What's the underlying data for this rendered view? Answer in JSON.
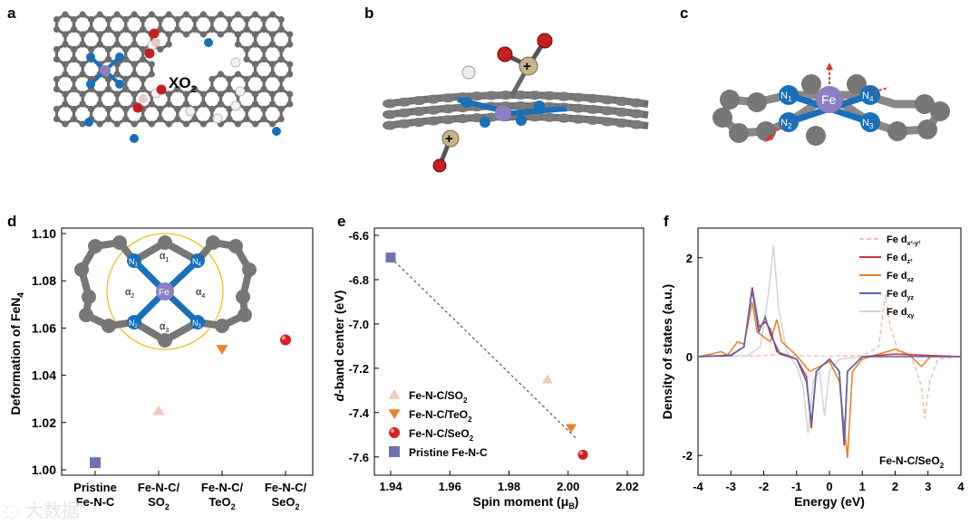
{
  "panel_letters": {
    "a": "a",
    "b": "b",
    "c": "c",
    "d": "d",
    "e": "e",
    "f": "f"
  },
  "panel_a": {
    "label": "XO",
    "sub": "2"
  },
  "panel_c": {
    "atoms": {
      "fe": "Fe",
      "n1": "N",
      "n1s": "1",
      "n2": "N",
      "n2s": "2",
      "n3": "N",
      "n3s": "3",
      "n4": "N",
      "n4s": "4"
    }
  },
  "panel_b": {
    "plus": "+"
  },
  "chart_data": [
    {
      "id": "d",
      "type": "scatter",
      "ylabel": "Deformation of FeN",
      "ylabel_sub": "4",
      "ylim": [
        1.0,
        1.1
      ],
      "yticks": [
        "1.00",
        "1.02",
        "1.04",
        "1.06",
        "1.08",
        "1.10"
      ],
      "categories": [
        {
          "l1": "Pristine",
          "l2": "Fe-N-C",
          "l2sub": ""
        },
        {
          "l1": "Fe-N-C/",
          "l2": "SO",
          "l2sub": "2"
        },
        {
          "l1": "Fe-N-C/",
          "l2": "TeO",
          "l2sub": "2"
        },
        {
          "l1": "Fe-N-C/",
          "l2": "SeO",
          "l2sub": "2"
        }
      ],
      "points": [
        {
          "cat": 0,
          "y": 1.003,
          "marker": "square",
          "color": "#6b74b0"
        },
        {
          "cat": 1,
          "y": 1.025,
          "marker": "triangle",
          "color": "#f0c8bc"
        },
        {
          "cat": 2,
          "y": 1.051,
          "marker": "triangle-down",
          "color": "#e8852a"
        },
        {
          "cat": 3,
          "y": 1.055,
          "marker": "circle",
          "color": "#d62020"
        }
      ],
      "inset": {
        "fe": "Fe",
        "n1": "N",
        "n1s": "1",
        "n2": "N",
        "n2s": "2",
        "n3": "N",
        "n3s": "3",
        "n4": "N",
        "n4s": "4",
        "a1": "α",
        "a1s": "1",
        "a2": "α",
        "a2s": "2",
        "a3": "α",
        "a3s": "3",
        "a4": "α",
        "a4s": "4"
      }
    },
    {
      "id": "e",
      "type": "scatter",
      "xlabel": "Spin moment (μ",
      "xlabel_sub": "B",
      "xlabel_end": ")",
      "ylabel_italic": "d",
      "ylabel": "-band center (eV)",
      "xlim": [
        1.94,
        2.02
      ],
      "ylim": [
        -7.65,
        -6.6
      ],
      "xticks": [
        "1.94",
        "1.96",
        "1.98",
        "2.00",
        "2.02"
      ],
      "yticks": [
        "-6.6",
        "-6.8",
        "-7.0",
        "-7.2",
        "-7.4",
        "-7.6"
      ],
      "points": [
        {
          "name": "Pristine Fe-N-C",
          "x": 1.94,
          "y": -6.7,
          "marker": "square",
          "color": "#6b74b0"
        },
        {
          "name": "Fe-N-C/SO2",
          "x": 1.993,
          "y": -7.25,
          "marker": "triangle",
          "color": "#f0c8bc"
        },
        {
          "name": "Fe-N-C/TeO2",
          "x": 2.001,
          "y": -7.47,
          "marker": "triangle-down",
          "color": "#e8852a"
        },
        {
          "name": "Fe-N-C/SeO2",
          "x": 2.005,
          "y": -7.59,
          "marker": "circle",
          "color": "#d62020"
        }
      ],
      "fit_line": {
        "x": [
          1.94,
          2.003
        ],
        "y": [
          -6.7,
          -7.52
        ]
      },
      "legend": [
        {
          "label": "Fe-N-C/SO",
          "sub": "2",
          "marker": "triangle",
          "color": "#f0c8bc"
        },
        {
          "label": "Fe-N-C/TeO",
          "sub": "2",
          "marker": "triangle-down",
          "color": "#e8852a"
        },
        {
          "label": "Fe-N-C/SeO",
          "sub": "2",
          "marker": "circle",
          "color": "#d62020"
        },
        {
          "label": "Pristine Fe-N-C",
          "sub": "",
          "marker": "square",
          "color": "#6b74b0"
        }
      ]
    },
    {
      "id": "f",
      "type": "line",
      "xlabel": "Energy (eV)",
      "ylabel": "Density of states (a.u.)",
      "xlim": [
        -4,
        4
      ],
      "ylim": [
        -2.4,
        2.6
      ],
      "xticks": [
        "-4",
        "-3",
        "-2",
        "-1",
        "0",
        "1",
        "2",
        "3",
        "4"
      ],
      "yticks": [
        "2",
        "0",
        "-2"
      ],
      "annotation": {
        "text": "Fe-N-C/SeO",
        "sub": "2"
      },
      "series": [
        {
          "name": "Fe d",
          "sub": "x²-y²",
          "color": "#f2c2b2",
          "dash": true,
          "points": [
            [
              -4,
              0
            ],
            [
              -3,
              0.01
            ],
            [
              -2,
              0.02
            ],
            [
              -1.5,
              0.05
            ],
            [
              -1,
              0.02
            ],
            [
              0,
              0.01
            ],
            [
              1,
              0.02
            ],
            [
              1.5,
              0.2
            ],
            [
              1.7,
              1.25
            ],
            [
              1.85,
              0.6
            ],
            [
              2.1,
              0.1
            ],
            [
              2.5,
              0
            ],
            [
              2.8,
              -0.6
            ],
            [
              2.9,
              -1.25
            ],
            [
              3.05,
              -0.5
            ],
            [
              3.3,
              -0.05
            ],
            [
              4,
              0
            ]
          ]
        },
        {
          "name": "Fe d",
          "sub": "z²",
          "color": "#d1303a",
          "dash": false,
          "points": [
            [
              -4,
              0
            ],
            [
              -3,
              0.03
            ],
            [
              -2.6,
              0.2
            ],
            [
              -2.35,
              1.4
            ],
            [
              -2.15,
              0.6
            ],
            [
              -1.95,
              0.7
            ],
            [
              -1.8,
              0.55
            ],
            [
              -1.6,
              0.1
            ],
            [
              -1,
              -0.05
            ],
            [
              -0.7,
              -0.4
            ],
            [
              -0.55,
              -1.45
            ],
            [
              -0.4,
              -0.3
            ],
            [
              0,
              -0.05
            ],
            [
              0.3,
              -0.3
            ],
            [
              0.45,
              -1.8
            ],
            [
              0.55,
              -0.3
            ],
            [
              1,
              0
            ],
            [
              2,
              0.05
            ],
            [
              4,
              0
            ]
          ]
        },
        {
          "name": "Fe d",
          "sub": "xz",
          "color": "#e8852a",
          "dash": false,
          "points": [
            [
              -4,
              0
            ],
            [
              -3.6,
              0.05
            ],
            [
              -3.3,
              0.1
            ],
            [
              -3.1,
              0.03
            ],
            [
              -2.8,
              0.3
            ],
            [
              -2.6,
              0.25
            ],
            [
              -2.35,
              1.1
            ],
            [
              -2.2,
              0.5
            ],
            [
              -1.8,
              0.3
            ],
            [
              -1.6,
              0.75
            ],
            [
              -1.45,
              0.3
            ],
            [
              -1,
              0.02
            ],
            [
              -0.6,
              -0.3
            ],
            [
              0,
              -0.1
            ],
            [
              0.3,
              -0.5
            ],
            [
              0.55,
              -2.05
            ],
            [
              0.7,
              -0.3
            ],
            [
              1,
              -0.05
            ],
            [
              1.5,
              0.05
            ],
            [
              2,
              0.15
            ],
            [
              2.4,
              0.05
            ],
            [
              2.8,
              -0.2
            ],
            [
              3.1,
              0.02
            ],
            [
              4,
              0
            ]
          ]
        },
        {
          "name": "Fe d",
          "sub": "yz",
          "color": "#5a64ac",
          "dash": false,
          "points": [
            [
              -4,
              0
            ],
            [
              -3,
              0.02
            ],
            [
              -2.6,
              0.2
            ],
            [
              -2.35,
              1.35
            ],
            [
              -2.15,
              0.5
            ],
            [
              -1.95,
              0.8
            ],
            [
              -1.8,
              0.45
            ],
            [
              -1.5,
              0.05
            ],
            [
              -1,
              -0.05
            ],
            [
              -0.7,
              -0.5
            ],
            [
              -0.55,
              -1.35
            ],
            [
              -0.4,
              -0.3
            ],
            [
              0,
              -0.05
            ],
            [
              0.3,
              -0.3
            ],
            [
              0.45,
              -1.75
            ],
            [
              0.55,
              -0.3
            ],
            [
              1,
              0
            ],
            [
              4,
              0
            ]
          ]
        },
        {
          "name": "Fe d",
          "sub": "xy",
          "color": "#d6d6d6",
          "dash": false,
          "points": [
            [
              -4,
              0
            ],
            [
              -2.5,
              0.02
            ],
            [
              -2.1,
              0.2
            ],
            [
              -1.85,
              1.3
            ],
            [
              -1.7,
              2.25
            ],
            [
              -1.55,
              1.0
            ],
            [
              -1.3,
              0.1
            ],
            [
              -1,
              -0.2
            ],
            [
              -0.8,
              -0.6
            ],
            [
              -0.65,
              -1.55
            ],
            [
              -0.5,
              -0.5
            ],
            [
              -0.3,
              -0.3
            ],
            [
              -0.15,
              -1.2
            ],
            [
              0,
              -0.3
            ],
            [
              0.3,
              -0.05
            ],
            [
              1,
              0
            ],
            [
              4,
              0
            ]
          ]
        }
      ]
    }
  ]
}
